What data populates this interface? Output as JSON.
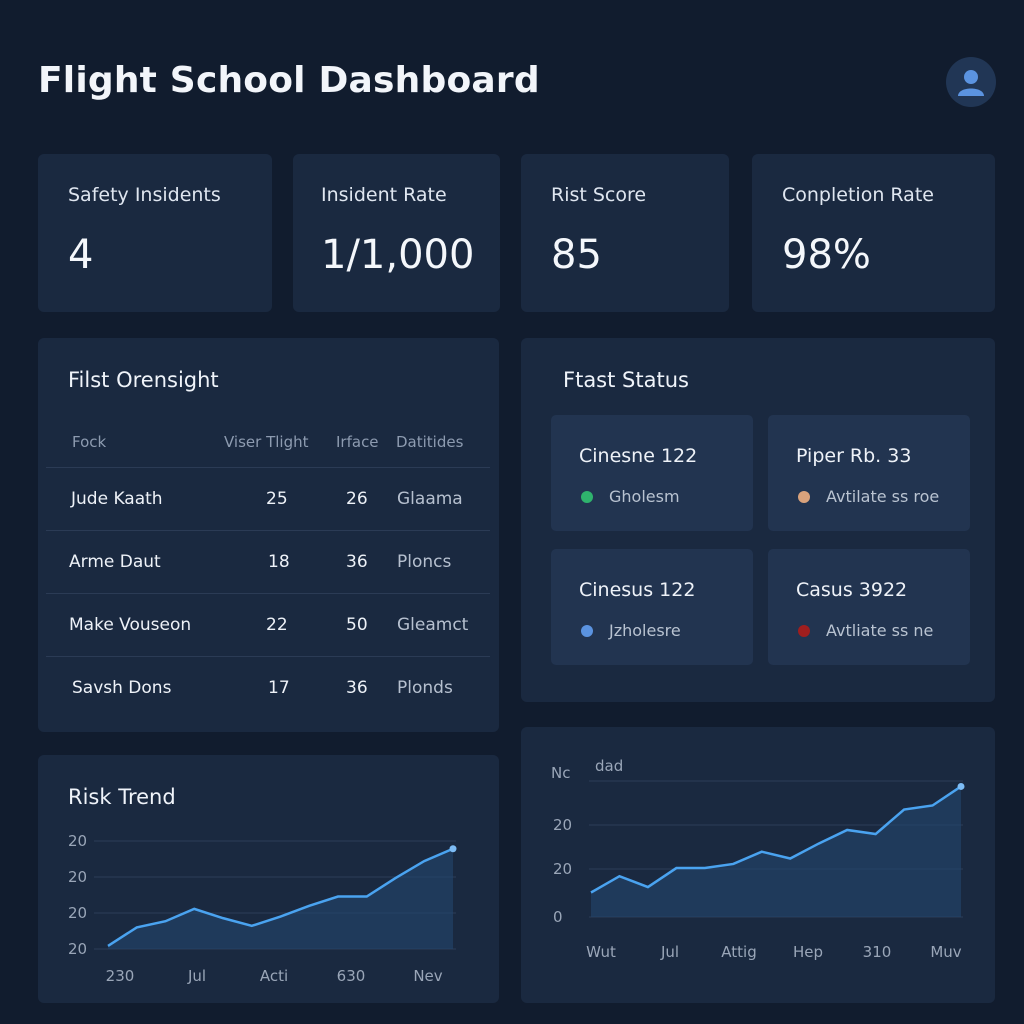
{
  "header": {
    "title": "Flight School Dashboard",
    "avatar_icon": "user-icon"
  },
  "kpis": [
    {
      "label": "Safety Insidents",
      "value": "4"
    },
    {
      "label": "Insident Rate",
      "value": "1/1,000"
    },
    {
      "label": "Rist Score",
      "value": "85"
    },
    {
      "label": "Conpletion Rate",
      "value": "98%"
    }
  ],
  "overview": {
    "title": "Filst Orensight",
    "columns": [
      "Fock",
      "Viser Tlight",
      "Irface",
      "Datitides"
    ],
    "rows": [
      [
        "Jude Kaath",
        "25",
        "26",
        "Glaama"
      ],
      [
        "Arme Daut",
        "18",
        "36",
        "Ploncs"
      ],
      [
        "Make Vouseon",
        "22",
        "50",
        "Gleamct"
      ],
      [
        "Savsh Dons",
        "17",
        "36",
        "Plonds"
      ]
    ]
  },
  "fleet": {
    "title": "Ftast Status",
    "aircraft": [
      {
        "name": "Cinesne 122",
        "status": "Gholesm",
        "color": "#2fb36d"
      },
      {
        "name": "Piper Rb. 33",
        "status": "Avtilate ss roe",
        "color": "#d9a27c"
      },
      {
        "name": "Cinesus 122",
        "status": "Jzholesre",
        "color": "#5b93e0"
      },
      {
        "name": "Casus 3922",
        "status": "Avtliate ss ne",
        "color": "#a01e1e"
      }
    ]
  },
  "risk_trend": {
    "title": "Risk Trend",
    "y_ticks": [
      "20",
      "20",
      "20",
      "20"
    ],
    "x_ticks": [
      "230",
      "Jul",
      "Acti",
      "630",
      "Nev"
    ]
  },
  "second_chart": {
    "top_left_label": "Nc",
    "top_label": "dad",
    "y_ticks": [
      "20",
      "20",
      "0"
    ],
    "x_ticks": [
      "Wut",
      "Jul",
      "Attig",
      "Hep",
      "310",
      "Muv"
    ]
  },
  "chart_data": [
    {
      "type": "area",
      "title": "Risk Trend",
      "series": [
        {
          "values": [
            2,
            14,
            18,
            26,
            20,
            15,
            21,
            28,
            34,
            34,
            46,
            57,
            65
          ]
        }
      ],
      "ylim": [
        0,
        70
      ],
      "color": "#4aa3f0"
    },
    {
      "type": "area",
      "title": "",
      "series": [
        {
          "values": [
            18,
            30,
            22,
            36,
            36,
            39,
            48,
            43,
            54,
            64,
            61,
            79,
            82,
            96
          ]
        }
      ],
      "ylim": [
        0,
        100
      ],
      "color": "#4aa3f0"
    }
  ]
}
